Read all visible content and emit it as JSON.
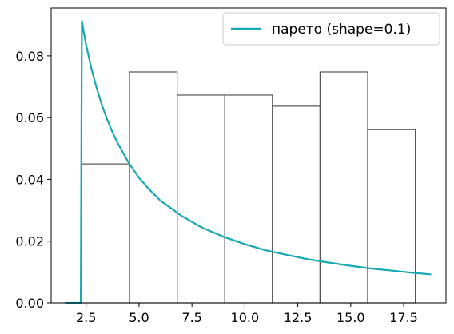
{
  "chart_data": {
    "type": "bar",
    "title": "",
    "xlabel": "",
    "ylabel": "",
    "xlim": [
      0.85,
      19.5
    ],
    "ylim": [
      0,
      0.0955
    ],
    "grid": false,
    "legend_position": "top-right",
    "x_ticks": [
      2.5,
      5.0,
      7.5,
      10.0,
      12.5,
      15.0,
      17.5
    ],
    "x_tick_labels": [
      "2.5",
      "5.0",
      "7.5",
      "10.0",
      "12.5",
      "15.0",
      "17.5"
    ],
    "y_ticks": [
      0.0,
      0.02,
      0.04,
      0.06,
      0.08
    ],
    "y_tick_labels": [
      "0.00",
      "0.02",
      "0.04",
      "0.06",
      "0.08"
    ],
    "histogram": {
      "bin_edges": [
        2.3,
        4.55,
        6.8,
        9.05,
        11.3,
        13.55,
        15.8,
        18.05
      ],
      "values": [
        0.045,
        0.0748,
        0.0673,
        0.0673,
        0.0637,
        0.0748,
        0.0561
      ],
      "edge_color": "#555555"
    },
    "series": [
      {
        "name": "парето (shape=0.1)",
        "type": "line",
        "color": "#16a9b3",
        "x": [
          1.5,
          2.2,
          2.25,
          2.3,
          2.4,
          2.5,
          2.75,
          3.0,
          3.25,
          3.5,
          3.75,
          4.0,
          4.5,
          5.0,
          5.5,
          6.0,
          7.0,
          8.0,
          9.0,
          10.0,
          11.0,
          12.0,
          13.0,
          14.0,
          15.0,
          16.0,
          17.0,
          18.0,
          18.8
        ],
        "y": [
          0.0,
          0.0,
          0.0,
          0.0913,
          0.0873,
          0.0836,
          0.0759,
          0.0695,
          0.064,
          0.0593,
          0.0552,
          0.0516,
          0.0455,
          0.0405,
          0.0366,
          0.0332,
          0.0282,
          0.0243,
          0.0214,
          0.019,
          0.017,
          0.0155,
          0.0141,
          0.013,
          0.012,
          0.0111,
          0.0104,
          0.0097,
          0.0092
        ]
      }
    ]
  }
}
